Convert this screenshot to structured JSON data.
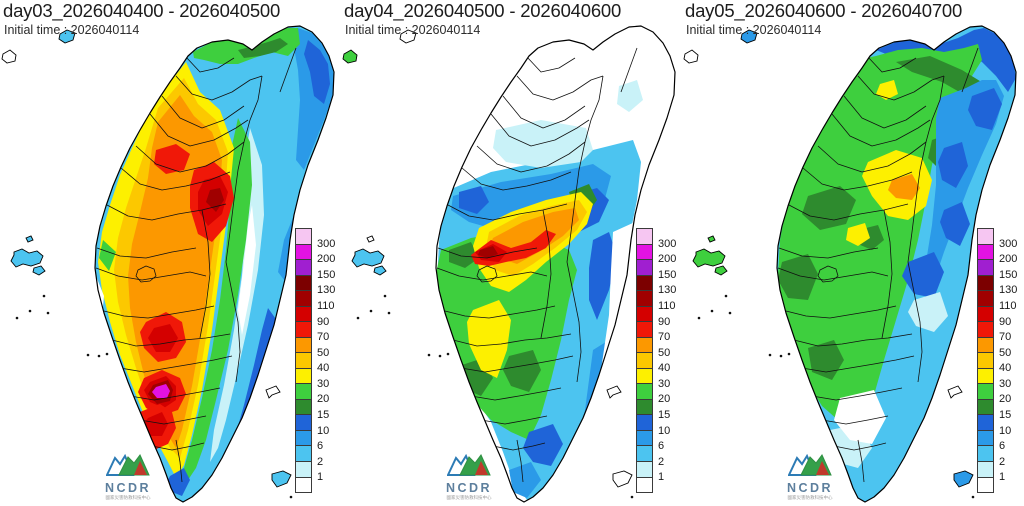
{
  "panels": [
    {
      "title": "day03_2026040400 - 2026040500",
      "initial_time": "Initial time : 2026040114"
    },
    {
      "title": "day04_2026040500 - 2026040600",
      "initial_time": "Initial time : 2026040114"
    },
    {
      "title": "day05_2026040600 - 2026040700",
      "initial_time": "Initial time : 2026040114"
    }
  ],
  "legend": {
    "tick_labels_bottom_to_top": [
      "1",
      "2",
      "6",
      "10",
      "15",
      "20",
      "30",
      "40",
      "50",
      "70",
      "90",
      "110",
      "130",
      "150",
      "200",
      "300"
    ],
    "levels_bottom_to_top": [
      "0",
      "1",
      "2",
      "6",
      "10",
      "15",
      "20",
      "30",
      "40",
      "50",
      "70",
      "90",
      "110",
      "130",
      "150",
      "200",
      "300"
    ],
    "palette": {
      "0": "#ffffff",
      "1": "#c9f2f8",
      "2": "#4cc4f0",
      "6": "#2b9ae8",
      "10": "#1f64d8",
      "15": "#2e8b2e",
      "20": "#3ecf3e",
      "30": "#fdf000",
      "40": "#fcc800",
      "50": "#fc9800",
      "70": "#f01808",
      "90": "#d40000",
      "110": "#a00000",
      "130": "#7c0000",
      "150": "#a01fd0",
      "200": "#e312e3",
      "300": "#f6c6f2"
    }
  },
  "logo": {
    "text": "NCDR",
    "subtext": "國家災害防救科技中心"
  }
}
